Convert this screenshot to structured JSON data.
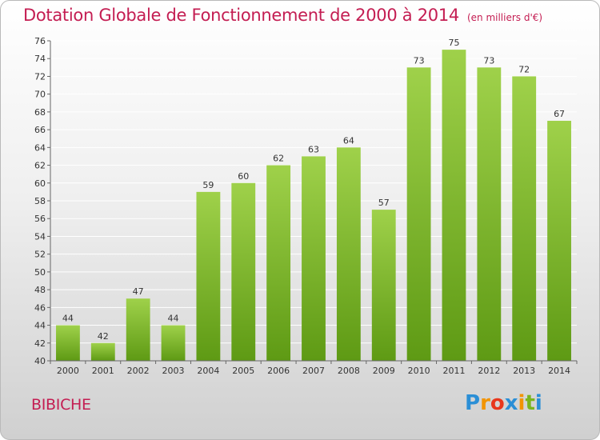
{
  "title": "Dotation Globale de Fonctionnement de 2000 à 2014",
  "subtitle": "(en milliers d'€)",
  "commune": "BIBICHE",
  "logo": {
    "text": "Proxiti",
    "letters": [
      {
        "ch": "P",
        "color": "#2b8fd6"
      },
      {
        "ch": "r",
        "color": "#f29400"
      },
      {
        "ch": "o",
        "color": "#e8371d"
      },
      {
        "ch": "x",
        "color": "#2b8fd6"
      },
      {
        "ch": "i",
        "color": "#f29400"
      },
      {
        "ch": "t",
        "color": "#7ab51d"
      },
      {
        "ch": "i",
        "color": "#2b8fd6"
      }
    ]
  },
  "chart_data": {
    "type": "bar",
    "title": "Dotation Globale de Fonctionnement de 2000 à 2014",
    "xlabel": "",
    "ylabel": "",
    "categories": [
      "2000",
      "2001",
      "2002",
      "2003",
      "2004",
      "2005",
      "2006",
      "2007",
      "2008",
      "2009",
      "2010",
      "2011",
      "2012",
      "2013",
      "2014"
    ],
    "values": [
      44,
      42,
      47,
      44,
      59,
      60,
      62,
      63,
      64,
      57,
      73,
      75,
      73,
      72,
      67
    ],
    "ylim": [
      40,
      76
    ],
    "ytick_step": 2,
    "grid": true,
    "legend": "none",
    "colors": {
      "bar_top": "#9fd14a",
      "bar_bottom": "#5e9a14",
      "grid": "#ffffff",
      "axis": "#666666"
    }
  }
}
